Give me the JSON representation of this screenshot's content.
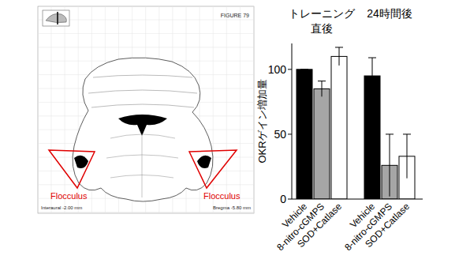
{
  "chart_data": {
    "type": "bar",
    "categories": [
      "トレーニング直後",
      "24時間後"
    ],
    "series": [
      {
        "name": "Vehicle",
        "color": "#000000",
        "values": [
          100,
          95
        ],
        "errors": [
          0,
          14
        ]
      },
      {
        "name": "8-nitro-cGMPS",
        "color": "#a6a6a6",
        "values": [
          85,
          26
        ],
        "errors": [
          6,
          24
        ]
      },
      {
        "name": "SOD+Catlase",
        "color": "#ffffff",
        "values": [
          110,
          33
        ],
        "errors": [
          7,
          17
        ]
      }
    ],
    "y_label": "OKRゲイン増加量",
    "ylim": [
      0,
      120
    ],
    "yticks": [
      0,
      50,
      100
    ],
    "grid": false
  },
  "diagram": {
    "figure_label": "FIGURE 79",
    "labels": [
      "Flocculus",
      "Flocculus"
    ],
    "interaural": "Interaural -2.00 mm",
    "bregma": "Bregma -5.80 mm"
  }
}
